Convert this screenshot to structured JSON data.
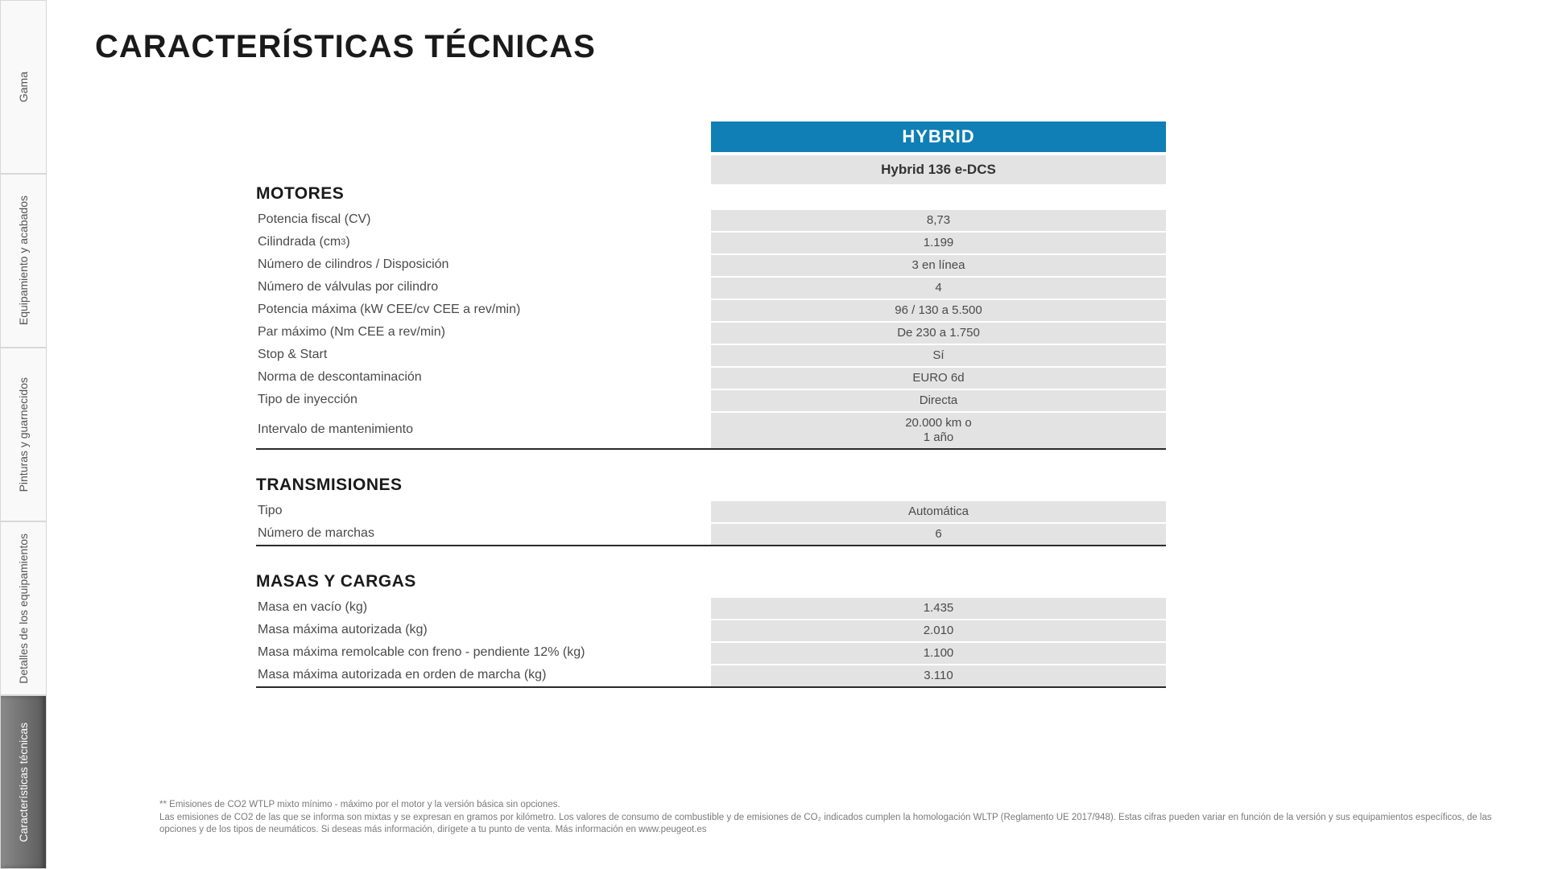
{
  "sidebar": {
    "tabs": [
      {
        "label": "Gama",
        "active": false
      },
      {
        "label": "Equipamiento y acabados",
        "active": false
      },
      {
        "label": "Pinturas y guarnecidos",
        "active": false
      },
      {
        "label": "Detalles de los\nequipamientos",
        "active": false
      },
      {
        "label": "Características técnicas",
        "active": true
      }
    ]
  },
  "page": {
    "title": "CARACTERÍSTICAS TÉCNICAS",
    "category_header": "HYBRID",
    "variant_header": "Hybrid 136 e-DCS"
  },
  "table": {
    "colors": {
      "category_bg": "#0f7fb5",
      "category_text": "#ffffff",
      "value_bg": "#e3e3e3",
      "section_border": "#2a2a2a"
    },
    "sections": [
      {
        "title": "MOTORES",
        "rows": [
          {
            "label": "Potencia fiscal (CV)",
            "value": "8,73"
          },
          {
            "label": "Cilindrada (cm³)",
            "value": "1.199"
          },
          {
            "label": "Número de cilindros / Disposición",
            "value": "3 en línea"
          },
          {
            "label": "Número de válvulas por cilindro",
            "value": "4"
          },
          {
            "label": "Potencia máxima (kW CEE/cv CEE a rev/min)",
            "value": "96 / 130 a 5.500"
          },
          {
            "label": "Par máximo (Nm CEE a rev/min)",
            "value": "De 230 a 1.750"
          },
          {
            "label": "Stop & Start",
            "value": "Sí"
          },
          {
            "label": "Norma de descontaminación",
            "value": "EURO 6d"
          },
          {
            "label": "Tipo de inyección",
            "value": "Directa"
          },
          {
            "label": "Intervalo de mantenimiento",
            "value": "20.000 km o\n1 año"
          }
        ]
      },
      {
        "title": "TRANSMISIONES",
        "rows": [
          {
            "label": "Tipo",
            "value": "Automática"
          },
          {
            "label": "Número de marchas",
            "value": "6"
          }
        ]
      },
      {
        "title": "MASAS Y CARGAS",
        "rows": [
          {
            "label": "Masa en vacío (kg)",
            "value": "1.435"
          },
          {
            "label": "Masa máxima autorizada (kg)",
            "value": "2.010"
          },
          {
            "label": "Masa máxima remolcable con freno - pendiente 12% (kg)",
            "value": "1.100"
          },
          {
            "label": "Masa máxima autorizada en orden de marcha (kg)",
            "value": "3.110"
          }
        ]
      }
    ]
  },
  "footnotes": {
    "line1": "** Emisiones de CO2 WTLP mixto mínimo - máximo por el motor y la versión básica sin opciones.",
    "line2": "Las emisiones de CO2 de las que se informa son mixtas y se expresan en gramos por kilómetro. Los valores de consumo de combustible y de emisiones de CO₂ indicados cumplen la homologación WLTP (Reglamento UE 2017/948). Estas cifras pueden variar en función de la versión y sus equipamientos específicos, de las opciones y de los tipos de neumáticos. Si deseas más información, dirígete a tu punto de venta. Más información en www.peugeot.es"
  }
}
